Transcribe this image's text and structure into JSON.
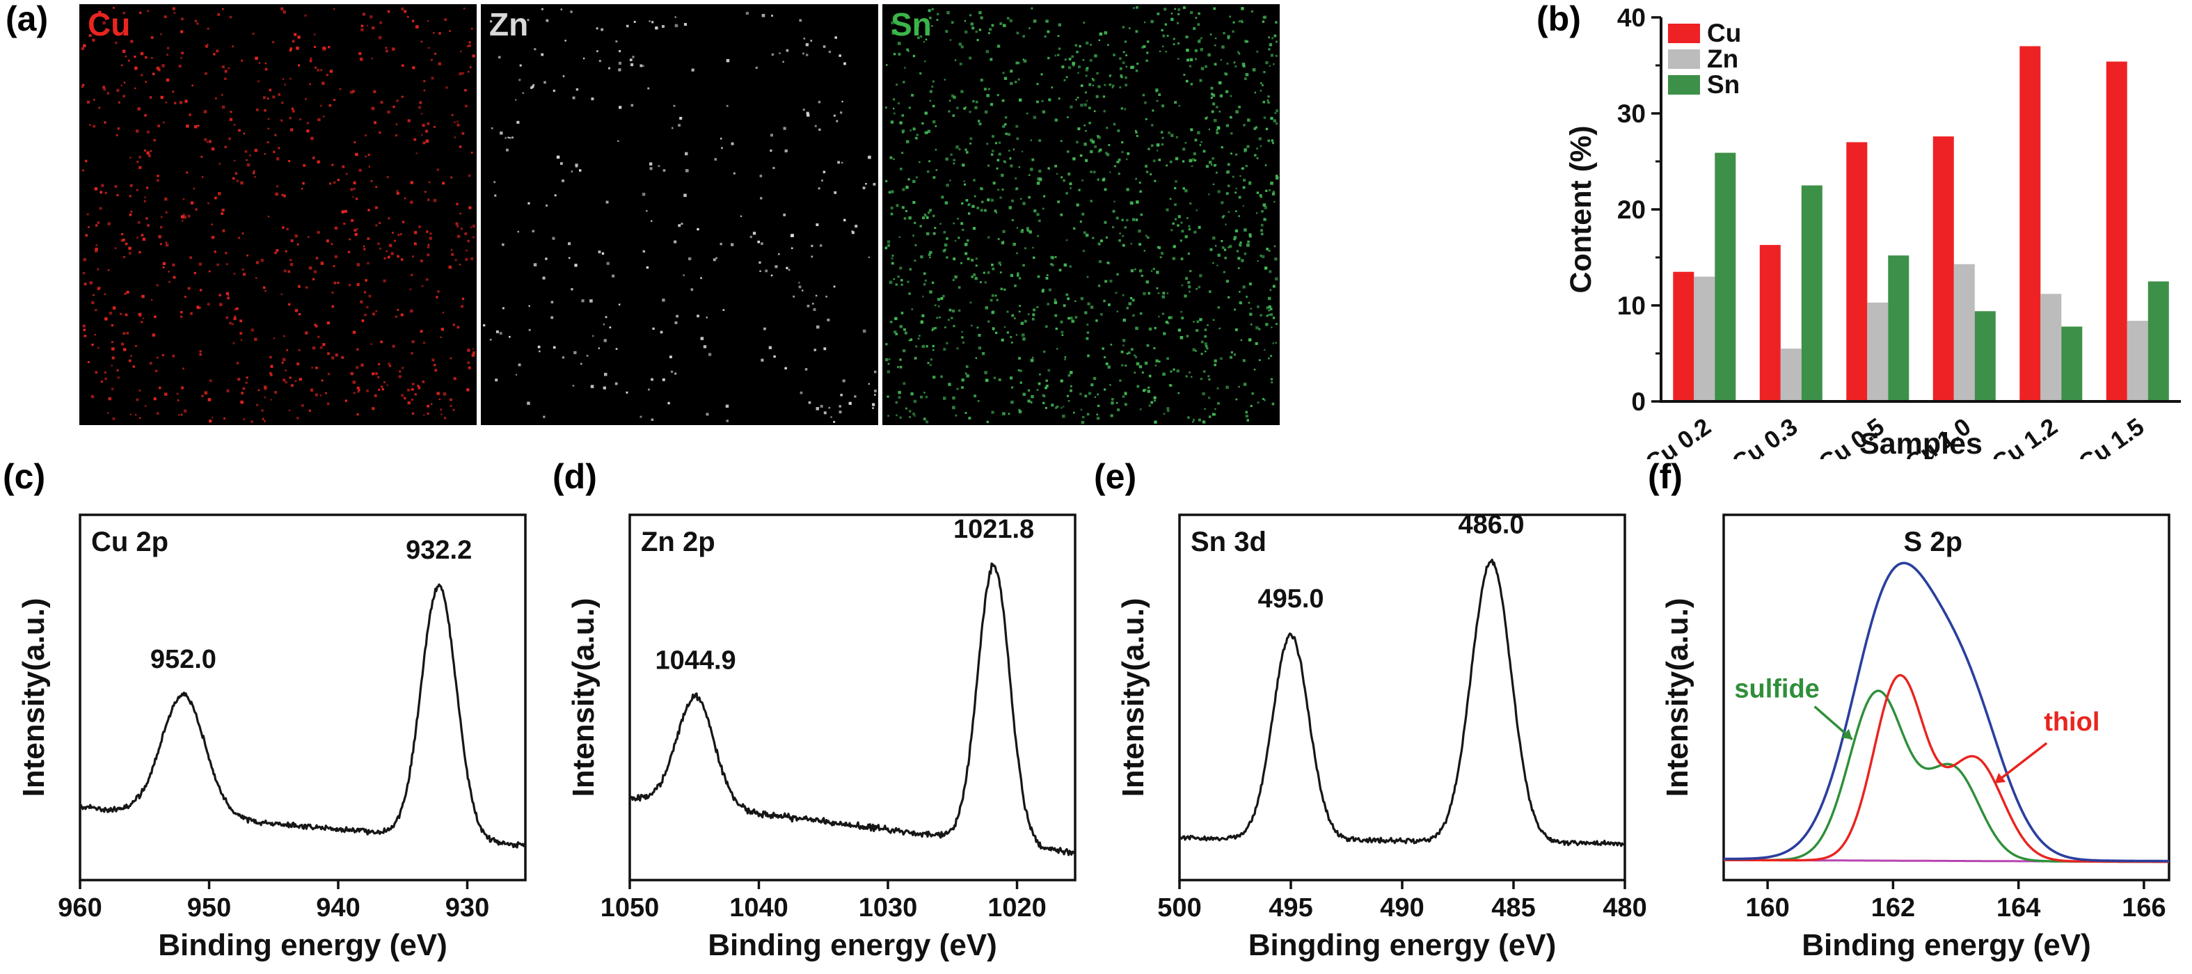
{
  "colors": {
    "background": "#ffffff",
    "axis": "#111111"
  },
  "panels": {
    "a": {
      "letter": "(a)",
      "maps": [
        {
          "element": "Cu",
          "label_color": "#e8251f",
          "dot_color": "#e8251f",
          "dot_count": 820,
          "seed": 11
        },
        {
          "element": "Zn",
          "label_color": "#d8d8d8",
          "dot_color": "#dedede",
          "dot_count": 300,
          "seed": 22
        },
        {
          "element": "Sn",
          "label_color": "#3bb54a",
          "dot_color": "#44bd57",
          "dot_count": 1350,
          "seed": 33
        }
      ]
    },
    "b": {
      "letter": "(b)"
    },
    "c": {
      "letter": "(c)"
    },
    "d": {
      "letter": "(d)"
    },
    "e": {
      "letter": "(e)"
    },
    "f": {
      "letter": "(f)"
    }
  },
  "chart_data": [
    {
      "id": "b",
      "type": "bar",
      "categories": [
        "Cu 0.2",
        "Cu 0.3",
        "Cu 0.5",
        "Cu 1.0",
        "Cu 1.2",
        "Cu 1.5"
      ],
      "series": [
        {
          "name": "Cu",
          "color": "#ee2224",
          "values": [
            13.5,
            16.3,
            27.0,
            27.6,
            37.0,
            35.4
          ]
        },
        {
          "name": "Zn",
          "color": "#bcbcbc",
          "values": [
            13.0,
            5.5,
            10.3,
            14.3,
            11.2,
            8.4
          ]
        },
        {
          "name": "Sn",
          "color": "#3d9048",
          "values": [
            25.9,
            22.5,
            15.2,
            9.4,
            7.8,
            12.5
          ]
        }
      ],
      "xlabel": "Samples",
      "ylabel": "Content (%)",
      "ylim": [
        0,
        40
      ],
      "yticks": [
        0,
        10,
        20,
        30,
        40
      ],
      "legend_position": "top-left",
      "grid": false
    },
    {
      "id": "c",
      "type": "line",
      "inner_label": "Cu 2p",
      "inner_label_pos": "top-left",
      "xlabel": "Binding energy (eV)",
      "ylabel": "Intensity(a.u.)",
      "xlim": [
        925.5,
        960
      ],
      "reversed": true,
      "xticks": [
        960,
        950,
        940,
        930
      ],
      "seed": 5,
      "series": [
        {
          "name": "Cu 2p spectrum",
          "color": "#161616",
          "width": 3.2,
          "noise": 0.009,
          "baseline": {
            "left": 0.2,
            "right": 0.095
          },
          "peaks": [
            {
              "center": 952.0,
              "amp": 0.33,
              "fwhm": 4.0,
              "label": "952.0"
            },
            {
              "center": 932.2,
              "amp": 0.69,
              "fwhm": 3.2,
              "label": "932.2"
            }
          ]
        }
      ]
    },
    {
      "id": "d",
      "type": "line",
      "inner_label": "Zn 2p",
      "inner_label_pos": "top-left",
      "xlabel": "Binding energy (eV)",
      "ylabel": "Intensity(a.u.)",
      "xlim": [
        1015.5,
        1050
      ],
      "reversed": true,
      "xticks": [
        1050,
        1040,
        1030,
        1020
      ],
      "seed": 7,
      "series": [
        {
          "name": "Zn 2p spectrum",
          "color": "#161616",
          "width": 3.2,
          "noise": 0.011,
          "baseline": {
            "left": 0.225,
            "right": 0.075
          },
          "peaks": [
            {
              "center": 1044.9,
              "amp": 0.3,
              "fwhm": 3.4,
              "label": "1044.9"
            },
            {
              "center": 1021.8,
              "amp": 0.76,
              "fwhm": 2.9,
              "label": "1021.8"
            }
          ]
        }
      ]
    },
    {
      "id": "e",
      "type": "line",
      "inner_label": "Sn 3d",
      "inner_label_pos": "top-left",
      "xlabel": "Bingding energy (eV)",
      "ylabel": "Intensity(a.u.)",
      "xlim": [
        480,
        500
      ],
      "reversed": true,
      "xticks": [
        500,
        495,
        490,
        485,
        480
      ],
      "seed": 9,
      "series": [
        {
          "name": "Sn 3d spectrum",
          "color": "#161616",
          "width": 3.2,
          "noise": 0.008,
          "baseline": {
            "left": 0.115,
            "right": 0.1
          },
          "peaks": [
            {
              "center": 495.0,
              "amp": 0.56,
              "fwhm": 1.9,
              "label": "495.0"
            },
            {
              "center": 486.0,
              "amp": 0.77,
              "fwhm": 2.1,
              "label": "486.0"
            }
          ]
        }
      ]
    },
    {
      "id": "f",
      "type": "line",
      "inner_label": "S 2p",
      "inner_label_pos": "top-center",
      "xlabel": "Binding energy (eV)",
      "ylabel": "Intensity(a.u.)",
      "xlim": [
        159.3,
        166.4
      ],
      "reversed": false,
      "xticks": [
        160,
        162,
        164,
        166
      ],
      "seed": 13,
      "series": [
        {
          "name": "baseline",
          "color": "#b845b2",
          "width": 3.0,
          "baseline": {
            "left": 0.055,
            "right": 0.05
          },
          "peaks": []
        },
        {
          "name": "sulfide",
          "color": "#2f8f3a",
          "width": 3.4,
          "baseline": {
            "left": 0.055,
            "right": 0.05
          },
          "peaks": [
            {
              "center": 161.75,
              "amp": 0.46,
              "fwhm": 1.05
            },
            {
              "center": 162.95,
              "amp": 0.25,
              "fwhm": 1.0
            }
          ]
        },
        {
          "name": "thiol",
          "color": "#e8241f",
          "width": 3.4,
          "baseline": {
            "left": 0.055,
            "right": 0.05
          },
          "peaks": [
            {
              "center": 162.1,
              "amp": 0.5,
              "fwhm": 0.95
            },
            {
              "center": 163.3,
              "amp": 0.28,
              "fwhm": 1.05
            }
          ]
        },
        {
          "name": "envelope",
          "color": "#2b3f9e",
          "width": 3.6,
          "baseline": {
            "left": 0.058,
            "right": 0.052
          },
          "peaks": [
            {
              "center": 162.0,
              "amp": 0.73,
              "fwhm": 1.5
            },
            {
              "center": 163.15,
              "amp": 0.42,
              "fwhm": 1.4
            }
          ]
        }
      ],
      "annotations": [
        {
          "text": "sulfide",
          "color": "#2f8f3a",
          "x": 160.15,
          "y": 0.5,
          "arrow": {
            "x1": 160.75,
            "y1": 0.475,
            "x2": 161.35,
            "y2": 0.385
          }
        },
        {
          "text": "thiol",
          "color": "#e8241f",
          "x": 164.85,
          "y": 0.41,
          "arrow": {
            "x1": 164.45,
            "y1": 0.375,
            "x2": 163.62,
            "y2": 0.265
          }
        }
      ]
    }
  ]
}
